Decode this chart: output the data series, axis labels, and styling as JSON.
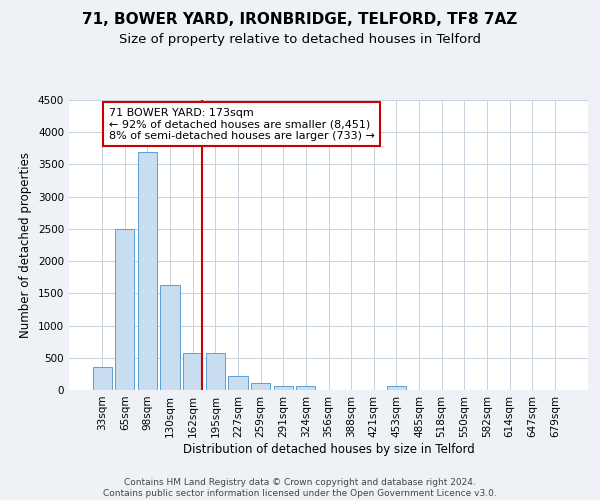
{
  "title": "71, BOWER YARD, IRONBRIDGE, TELFORD, TF8 7AZ",
  "subtitle": "Size of property relative to detached houses in Telford",
  "xlabel": "Distribution of detached houses by size in Telford",
  "ylabel": "Number of detached properties",
  "categories": [
    "33sqm",
    "65sqm",
    "98sqm",
    "130sqm",
    "162sqm",
    "195sqm",
    "227sqm",
    "259sqm",
    "291sqm",
    "324sqm",
    "356sqm",
    "388sqm",
    "421sqm",
    "453sqm",
    "485sqm",
    "518sqm",
    "550sqm",
    "582sqm",
    "614sqm",
    "647sqm",
    "679sqm"
  ],
  "values": [
    350,
    2500,
    3700,
    1625,
    580,
    580,
    220,
    105,
    65,
    65,
    0,
    0,
    0,
    55,
    0,
    0,
    0,
    0,
    0,
    0,
    0
  ],
  "bar_color": "#c9ddf0",
  "bar_edge_color": "#5a9fd4",
  "vline_color": "#cc0000",
  "vline_x": 4.42,
  "annotation_text": "71 BOWER YARD: 173sqm\n← 92% of detached houses are smaller (8,451)\n8% of semi-detached houses are larger (733) →",
  "annotation_box_color": "#ffffff",
  "annotation_box_edge": "#cc0000",
  "ylim": [
    0,
    4500
  ],
  "yticks": [
    0,
    500,
    1000,
    1500,
    2000,
    2500,
    3000,
    3500,
    4000,
    4500
  ],
  "footer_text": "Contains HM Land Registry data © Crown copyright and database right 2024.\nContains public sector information licensed under the Open Government Licence v3.0.",
  "background_color": "#eef2f7",
  "plot_background": "#ffffff",
  "grid_color": "#c8d0dc",
  "title_fontsize": 11,
  "subtitle_fontsize": 9.5,
  "axis_label_fontsize": 8.5,
  "tick_fontsize": 7.5,
  "footer_fontsize": 6.5
}
